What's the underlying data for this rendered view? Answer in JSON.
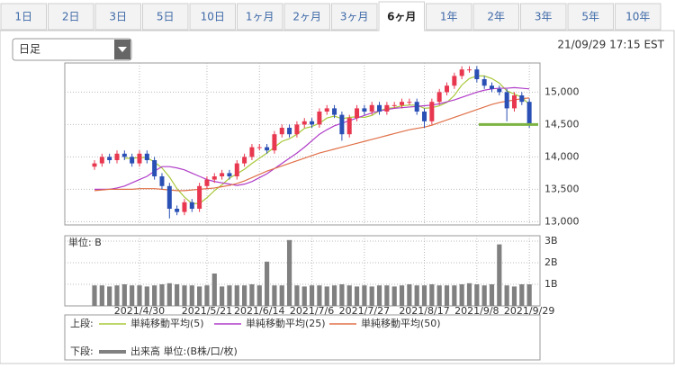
{
  "tabs": [
    "1日",
    "2日",
    "3日",
    "5日",
    "10日",
    "1ヶ月",
    "2ヶ月",
    "3ヶ月",
    "6ヶ月",
    "1年",
    "2年",
    "3年",
    "5年",
    "10年"
  ],
  "selected_tab": 8,
  "dropdown": "日足",
  "timestamp": "21/09/29 17:15 EST",
  "legend_labels": {
    "upper": "上段:",
    "lower": "下段:"
  },
  "chart_data": [
    {
      "type": "candlestick",
      "ylim": [
        12950,
        15450
      ],
      "yticks": [
        {
          "value": 15000,
          "label": "15,000"
        },
        {
          "value": 14500,
          "label": "14,500"
        },
        {
          "value": 14000,
          "label": "14,000"
        },
        {
          "value": 13500,
          "label": "13,500"
        },
        {
          "value": 13000,
          "label": "13,000"
        }
      ],
      "grid": true,
      "up_color": "#e8384f",
      "down_color": "#2a4fb5",
      "open": [
        13850,
        13900,
        14000,
        13950,
        14050,
        14000,
        13900,
        14050,
        13950,
        13700,
        13550,
        13200,
        13150,
        13300,
        13200,
        13550,
        13650,
        13700,
        13750,
        13700,
        13900,
        14000,
        14150,
        14150,
        14100,
        14350,
        14450,
        14350,
        14500,
        14550,
        14500,
        14700,
        14750,
        14650,
        14350,
        14600,
        14750,
        14700,
        14800,
        14700,
        14800,
        14800,
        14850,
        14850,
        14700,
        14550,
        14850,
        15000,
        15100,
        15250,
        15350,
        15350,
        15200,
        15100,
        15050,
        15000,
        14750,
        14950,
        14850
      ],
      "high": [
        13950,
        14050,
        14050,
        14100,
        14100,
        14050,
        14100,
        14100,
        14000,
        13750,
        13600,
        13250,
        13350,
        13350,
        13600,
        13700,
        13750,
        13800,
        13800,
        13950,
        14050,
        14200,
        14200,
        14200,
        14400,
        14500,
        14500,
        14550,
        14600,
        14600,
        14750,
        14800,
        14800,
        14700,
        14650,
        14800,
        14800,
        14850,
        14850,
        14850,
        14850,
        14900,
        14900,
        14900,
        14750,
        14900,
        15050,
        15150,
        15300,
        15400,
        15400,
        15400,
        15250,
        15150,
        15100,
        15050,
        15000,
        15000,
        14900
      ],
      "low": [
        13800,
        13850,
        13900,
        13900,
        13950,
        13850,
        13850,
        13900,
        13650,
        13500,
        13050,
        13100,
        13100,
        13150,
        13150,
        13500,
        13600,
        13650,
        13650,
        13650,
        13850,
        13950,
        14100,
        14050,
        14050,
        14300,
        14300,
        14300,
        14450,
        14450,
        14450,
        14650,
        14600,
        14250,
        14300,
        14550,
        14650,
        14650,
        14650,
        14650,
        14750,
        14750,
        14800,
        14650,
        14450,
        14500,
        14800,
        14950,
        15050,
        15200,
        15300,
        15150,
        15050,
        15000,
        14950,
        14550,
        14700,
        14800,
        14450
      ],
      "close": [
        13900,
        14000,
        13950,
        14050,
        14000,
        13900,
        14050,
        13950,
        13700,
        13550,
        13200,
        13150,
        13300,
        13200,
        13550,
        13650,
        13700,
        13750,
        13700,
        13900,
        14000,
        14150,
        14150,
        14100,
        14350,
        14450,
        14350,
        14500,
        14550,
        14500,
        14700,
        14750,
        14650,
        14350,
        14600,
        14750,
        14700,
        14800,
        14700,
        14800,
        14800,
        14850,
        14850,
        14700,
        14550,
        14850,
        15000,
        15100,
        15250,
        15350,
        15350,
        15200,
        15100,
        15050,
        15000,
        14750,
        14950,
        14850,
        14500
      ],
      "series": [
        {
          "name": "単純移動平均(5)",
          "color": "#a8c83a",
          "values": [
            null,
            null,
            null,
            null,
            13980,
            13980,
            13990,
            13990,
            13920,
            13830,
            13690,
            13510,
            13380,
            13280,
            13280,
            13370,
            13480,
            13570,
            13670,
            13740,
            13810,
            13900,
            13980,
            14060,
            14150,
            14240,
            14280,
            14350,
            14440,
            14470,
            14520,
            14600,
            14630,
            14590,
            14610,
            14620,
            14610,
            14640,
            14710,
            14750,
            14760,
            14790,
            14800,
            14800,
            14750,
            14760,
            14790,
            14840,
            14950,
            15110,
            15210,
            15250,
            15250,
            15210,
            15140,
            15020,
            14970,
            14920,
            14810
          ]
        },
        {
          "name": "単純移動平均(25)",
          "color": "#b03cc8",
          "values": [
            13500,
            13500,
            13500,
            13520,
            13550,
            13600,
            13650,
            13700,
            13780,
            13850,
            13850,
            13830,
            13800,
            13750,
            13700,
            13650,
            13620,
            13600,
            13580,
            13560,
            13580,
            13620,
            13680,
            13740,
            13820,
            13900,
            13980,
            14060,
            14150,
            14250,
            14350,
            14420,
            14480,
            14520,
            14560,
            14600,
            14640,
            14680,
            14710,
            14730,
            14750,
            14760,
            14770,
            14780,
            14790,
            14800,
            14820,
            14850,
            14880,
            14920,
            14960,
            15000,
            15030,
            15050,
            15060,
            15060,
            15070,
            15060,
            15050
          ]
        },
        {
          "name": "単純移動平均(50)",
          "color": "#e07048",
          "values": [
            13480,
            13490,
            13500,
            13500,
            13500,
            13500,
            13510,
            13510,
            13510,
            13500,
            13490,
            13480,
            13480,
            13490,
            13500,
            13510,
            13520,
            13540,
            13560,
            13590,
            13630,
            13680,
            13730,
            13780,
            13820,
            13860,
            13900,
            13940,
            13980,
            14020,
            14060,
            14090,
            14120,
            14150,
            14180,
            14210,
            14240,
            14270,
            14300,
            14330,
            14360,
            14390,
            14420,
            14440,
            14460,
            14490,
            14530,
            14570,
            14610,
            14650,
            14690,
            14730,
            14770,
            14810,
            14840,
            14860,
            14880,
            14900,
            14910
          ]
        }
      ],
      "reference_line": {
        "value": 14500,
        "color": "#7cb342"
      }
    },
    {
      "type": "bar",
      "unit_label": "単位: B",
      "categories": [
        null,
        null,
        null,
        null,
        null,
        null,
        "2021/4/30",
        null,
        null,
        null,
        null,
        null,
        null,
        null,
        null,
        "2021/5/21",
        null,
        null,
        null,
        null,
        null,
        null,
        "2021/6/14",
        null,
        null,
        null,
        null,
        null,
        null,
        "2021/7/6",
        null,
        null,
        null,
        null,
        null,
        null,
        "2021/7/27",
        null,
        null,
        null,
        null,
        null,
        null,
        null,
        "2021/8/17",
        null,
        null,
        null,
        null,
        null,
        null,
        "2021/9/8",
        null,
        null,
        null,
        null,
        null,
        null,
        "2021/9/29"
      ],
      "ylim": [
        0,
        3.25
      ],
      "yticks": [
        {
          "value": 3,
          "label": "3B"
        },
        {
          "value": 2,
          "label": "2B"
        },
        {
          "value": 1,
          "label": "1B"
        }
      ],
      "grid": true,
      "series": [
        {
          "name": "出来高 単位:(B株/口/枚)",
          "color": "#808080",
          "values": [
            0.95,
            0.95,
            0.9,
            0.95,
            1.0,
            0.95,
            0.95,
            0.9,
            0.95,
            1.0,
            1.05,
            1.0,
            0.95,
            0.95,
            0.9,
            0.95,
            1.5,
            0.9,
            0.95,
            0.95,
            0.95,
            1.0,
            0.95,
            2.05,
            0.95,
            0.95,
            3.05,
            0.95,
            0.9,
            0.95,
            0.95,
            0.9,
            0.95,
            1.0,
            0.95,
            0.9,
            0.95,
            0.9,
            0.95,
            0.95,
            0.9,
            0.95,
            1.0,
            0.95,
            0.95,
            1.0,
            0.95,
            0.95,
            0.95,
            1.0,
            1.05,
            1.0,
            0.95,
            1.0,
            2.85,
            0.95,
            0.9,
            1.0,
            1.0
          ]
        }
      ]
    }
  ]
}
